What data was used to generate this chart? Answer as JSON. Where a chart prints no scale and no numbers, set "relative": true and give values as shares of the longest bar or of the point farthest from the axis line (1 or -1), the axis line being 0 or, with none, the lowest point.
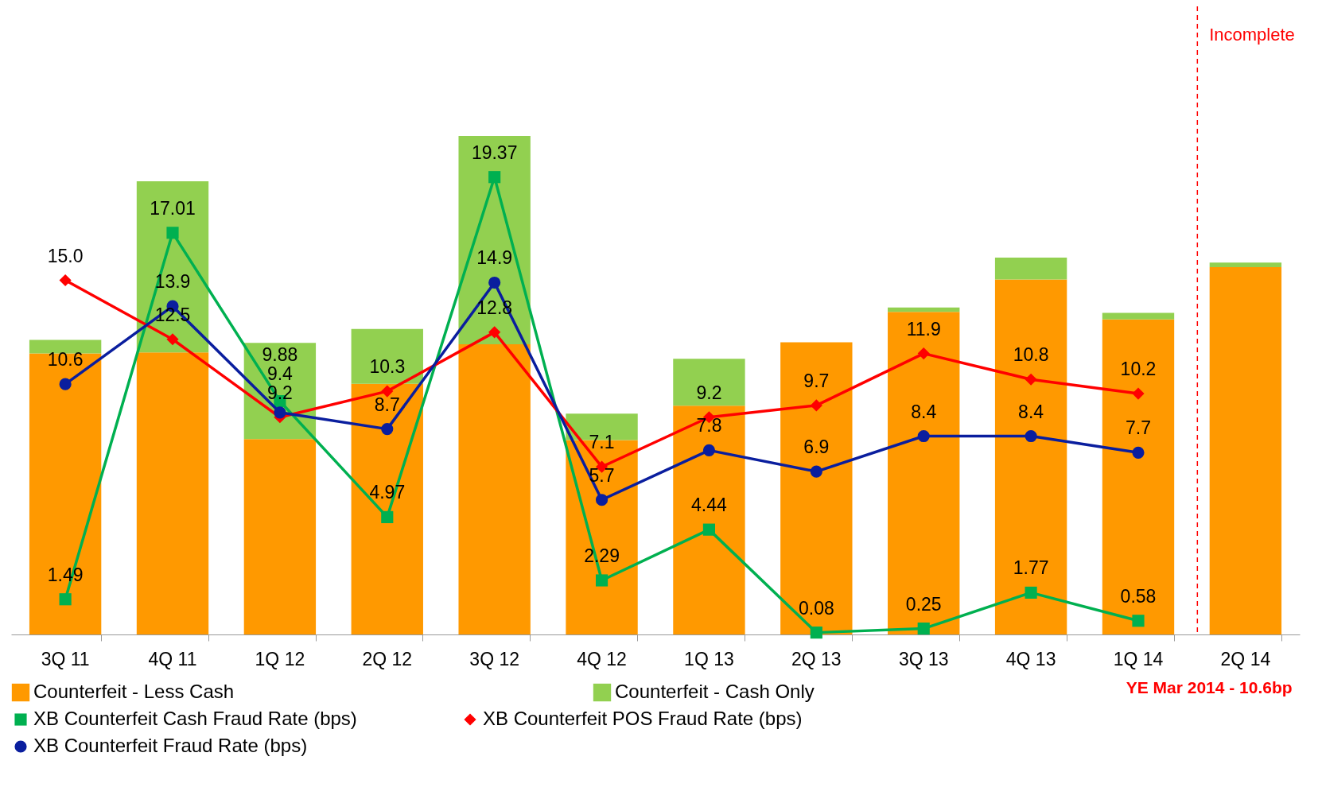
{
  "chart_data": [
    {
      "type": "bar",
      "stacked": true,
      "relative": true,
      "legend": "bottom",
      "tick_labels": "x",
      "categories": [
        "3Q 11",
        "4Q 11",
        "1Q 12",
        "2Q 12",
        "3Q 12",
        "4Q 12",
        "1Q 13",
        "2Q 13",
        "3Q 13",
        "4Q 13",
        "1Q 14",
        "2Q 14"
      ],
      "series": [
        {
          "name": "Counterfeit - Less Cash",
          "color": "#ff9900",
          "values": [
            0.564,
            0.566,
            0.392,
            0.503,
            0.582,
            0.39,
            0.459,
            0.586,
            0.647,
            0.712,
            0.632,
            0.737
          ]
        },
        {
          "name": "Counterfeit - Cash Only",
          "color": "#92d050",
          "values": [
            0.027,
            0.343,
            0.193,
            0.11,
            0.418,
            0.053,
            0.094,
            0,
            0.009,
            0.044,
            0.013,
            0.009
          ]
        }
      ],
      "ref_lines": [
        {
          "axis": "x",
          "value": "2Q 14",
          "label": "Incomplete",
          "color": "#ff0000",
          "line_style": "dashed"
        }
      ],
      "annotations": [
        "YE Mar 2014 - 10.6bp"
      ]
    },
    {
      "type": "line",
      "legend": "bottom",
      "tick_labels": "x",
      "ylim": [
        0,
        26.6
      ],
      "categories": [
        "3Q 11",
        "4Q 11",
        "1Q 12",
        "2Q 12",
        "3Q 12",
        "4Q 12",
        "1Q 13",
        "2Q 13",
        "3Q 13",
        "4Q 13",
        "1Q 14",
        "2Q 14"
      ],
      "series": [
        {
          "name": "XB Counterfeit Cash Fraud Rate (bps)",
          "color": "#00b050",
          "marker": "square",
          "values": [
            1.49,
            17.01,
            9.88,
            4.97,
            19.37,
            2.29,
            4.44,
            0.08,
            0.25,
            1.77,
            0.58,
            null
          ],
          "value_labels": [
            "1.49",
            "17.01",
            "9.88",
            "4.97",
            "19.37",
            "2.29",
            "4.44",
            "0.08",
            "0.25",
            "1.77",
            "0.58",
            null
          ]
        },
        {
          "name": "XB Counterfeit POS Fraud Rate (bps)",
          "color": "#ff0000",
          "marker": "diamond",
          "values": [
            15.0,
            12.5,
            9.2,
            10.3,
            12.8,
            7.1,
            9.2,
            9.7,
            11.9,
            10.8,
            10.2,
            null
          ],
          "value_labels": [
            "15.0",
            "12.5",
            "9.2",
            "10.3",
            "12.8",
            "7.1",
            "9.2",
            "9.7",
            "11.9",
            "10.8",
            "10.2",
            null
          ]
        },
        {
          "name": "XB Counterfeit Fraud Rate (bps)",
          "color": "#0a1e9e",
          "marker": "circle",
          "values": [
            10.6,
            13.9,
            9.4,
            8.7,
            14.9,
            5.7,
            7.8,
            6.9,
            8.4,
            8.4,
            7.7,
            null
          ],
          "value_labels": [
            "10.6",
            "13.9",
            "9.4",
            "8.7",
            "14.9",
            "5.7",
            "7.8",
            "6.9",
            "8.4",
            "8.4",
            "7.7",
            null
          ]
        }
      ]
    }
  ]
}
